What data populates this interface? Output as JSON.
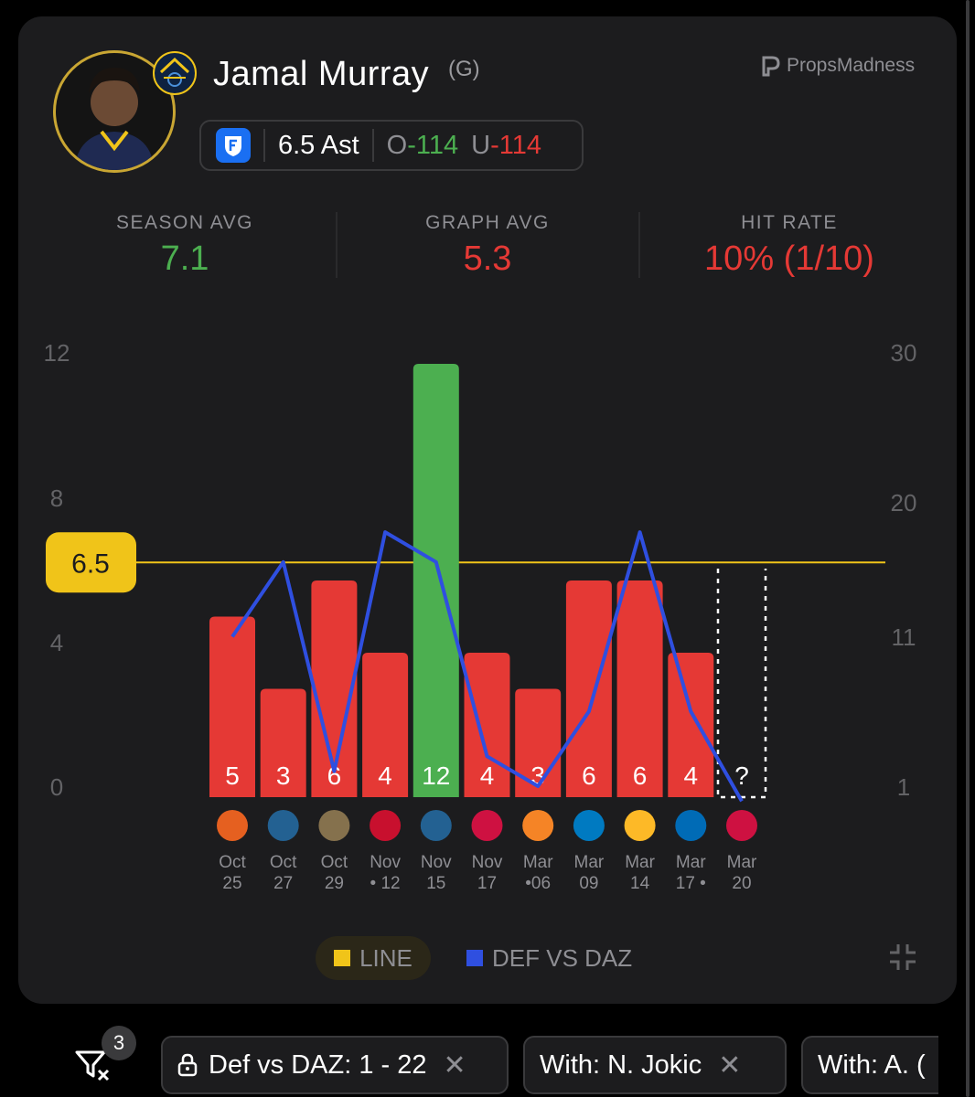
{
  "player": {
    "name": "Jamal Murray",
    "position": "(G)",
    "team": "Denver Nuggets"
  },
  "brand": "PropsMadness",
  "prop": {
    "line": "6.5 Ast",
    "over_label": "O",
    "over_odds": "-114",
    "under_label": "U",
    "under_odds": "-114",
    "book_icon": "fanduel-shield-icon"
  },
  "stats": {
    "season_avg_label": "SEASON AVG",
    "season_avg": "7.1",
    "graph_avg_label": "GRAPH AVG",
    "graph_avg": "5.3",
    "hit_rate_label": "HIT RATE",
    "hit_rate": "10% (1/10)"
  },
  "chart_data": {
    "type": "bar",
    "line_value": 6.5,
    "line_label": "6.5",
    "left_axis": {
      "ticks": [
        "12",
        "8",
        "4",
        "0"
      ],
      "ylim": [
        0,
        12
      ]
    },
    "right_axis": {
      "ticks": [
        "30",
        "20",
        "11",
        "1"
      ],
      "ylim": [
        1,
        30
      ]
    },
    "games": [
      {
        "value": 5,
        "label": "5",
        "opp": "PHX",
        "date_top": "Oct",
        "date_bot": "25",
        "hit": false,
        "def": 11
      },
      {
        "value": 3,
        "label": "3",
        "opp": "MIN",
        "date_top": "Oct",
        "date_bot": "27",
        "hit": false,
        "def": 16
      },
      {
        "value": 6,
        "label": "6",
        "opp": "NOP",
        "date_top": "Oct",
        "date_bot": "29",
        "hit": false,
        "def": 2
      },
      {
        "value": 4,
        "label": "4",
        "opp": "LAC",
        "date_top": "Nov",
        "date_bot": "• 12",
        "hit": false,
        "def": 18
      },
      {
        "value": 12,
        "label": "12",
        "opp": "MIN",
        "date_top": "Nov",
        "date_bot": "15",
        "hit": true,
        "def": 16
      },
      {
        "value": 4,
        "label": "4",
        "opp": "CHI",
        "date_top": "Nov",
        "date_bot": "17",
        "hit": false,
        "def": 3
      },
      {
        "value": 3,
        "label": "3",
        "opp": "NYK",
        "date_top": "Mar",
        "date_bot": "•06",
        "hit": false,
        "def": 1
      },
      {
        "value": 6,
        "label": "6",
        "opp": "OKC",
        "date_top": "Mar",
        "date_bot": "09",
        "hit": false,
        "def": 6
      },
      {
        "value": 6,
        "label": "6",
        "opp": "LAL",
        "date_top": "Mar",
        "date_bot": "14",
        "hit": false,
        "def": 18
      },
      {
        "value": 4,
        "label": "4",
        "opp": "PHI",
        "date_top": "Mar",
        "date_bot": "17 •",
        "hit": false,
        "def": 6
      },
      {
        "value": null,
        "label": "?",
        "opp": "TOR",
        "date_top": "Mar",
        "date_bot": "20",
        "hit": false,
        "def": 0
      }
    ],
    "colors": {
      "hit": "#4caf50",
      "miss": "#e53935",
      "line": "#f0c419",
      "def": "#2f4fe0"
    },
    "legend": [
      "LINE",
      "DEF VS DAZ"
    ]
  },
  "filters": {
    "count": "3",
    "chips": [
      {
        "label": "Def vs DAZ: 1 - 22",
        "locked": true
      },
      {
        "label": "With: N. Jokic",
        "locked": false
      },
      {
        "label": "With: A. (",
        "locked": false
      }
    ],
    "close_glyph": "✕"
  }
}
